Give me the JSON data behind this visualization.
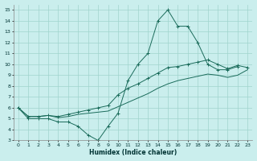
{
  "xlabel": "Humidex (Indice chaleur)",
  "bg_color": "#caeeed",
  "grid_color": "#a0d4cc",
  "line_color": "#1a6b5a",
  "xlim": [
    -0.5,
    23.5
  ],
  "ylim": [
    3,
    15.5
  ],
  "line1_x": [
    0,
    1,
    2,
    3,
    4,
    5,
    6,
    7,
    8,
    9,
    10,
    11,
    12,
    13,
    14,
    15,
    16,
    17,
    18,
    19,
    20,
    21,
    22
  ],
  "line1_y": [
    6.0,
    5.0,
    5.0,
    5.0,
    4.7,
    4.7,
    4.3,
    3.5,
    3.0,
    4.3,
    5.5,
    8.5,
    10.0,
    11.0,
    14.0,
    15.0,
    13.5,
    13.5,
    12.0,
    10.0,
    9.5,
    9.5,
    9.8
  ],
  "line2_x": [
    0,
    1,
    2,
    3,
    4,
    5,
    6,
    7,
    8,
    9,
    10,
    11,
    12,
    13,
    14,
    15,
    16,
    17,
    18,
    19,
    20,
    21,
    22,
    23
  ],
  "line2_y": [
    6.0,
    5.2,
    5.2,
    5.3,
    5.2,
    5.4,
    5.6,
    5.8,
    6.0,
    6.2,
    7.2,
    7.8,
    8.2,
    8.7,
    9.2,
    9.7,
    9.8,
    10.0,
    10.2,
    10.4,
    10.0,
    9.6,
    9.9,
    9.7
  ],
  "line3_x": [
    0,
    1,
    2,
    3,
    4,
    5,
    6,
    7,
    8,
    9,
    10,
    11,
    12,
    13,
    14,
    15,
    16,
    17,
    18,
    19,
    20,
    21,
    22,
    23
  ],
  "line3_y": [
    6.0,
    5.2,
    5.2,
    5.3,
    5.1,
    5.2,
    5.4,
    5.5,
    5.6,
    5.7,
    6.1,
    6.5,
    6.9,
    7.3,
    7.8,
    8.2,
    8.5,
    8.7,
    8.9,
    9.1,
    9.0,
    8.8,
    9.0,
    9.5
  ]
}
